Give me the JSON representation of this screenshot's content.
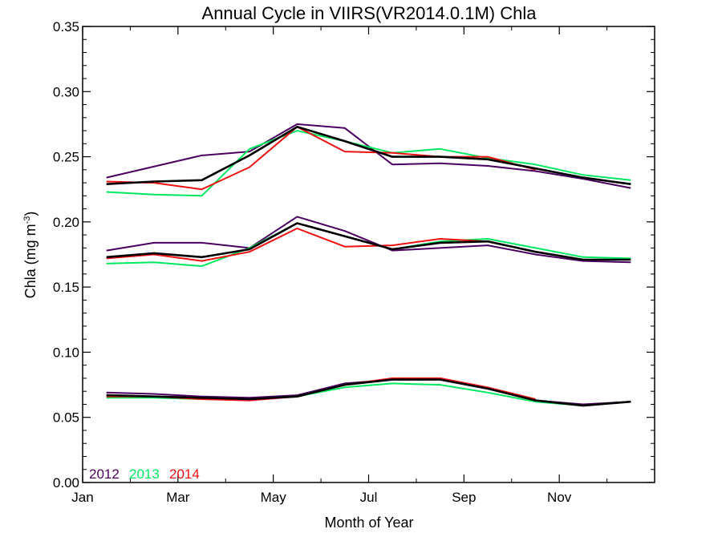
{
  "chart_data": {
    "type": "line",
    "title": "Annual Cycle in VIIRS(VR2014.0.1M) Chla",
    "xlabel": "Month of Year",
    "ylabel_main": "Chla (mg m",
    "ylabel_sup": "-3",
    "ylabel_close": ")",
    "xlim": [
      0,
      12
    ],
    "ylim": [
      0.0,
      0.35
    ],
    "grid": false,
    "legend_placement": "bottom-left",
    "x_ticks": [
      {
        "value": 0,
        "label": "Jan"
      },
      {
        "value": 2,
        "label": "Mar"
      },
      {
        "value": 4,
        "label": "May"
      },
      {
        "value": 6,
        "label": "Jul"
      },
      {
        "value": 8,
        "label": "Sep"
      },
      {
        "value": 10,
        "label": "Nov"
      }
    ],
    "y_ticks": [
      {
        "value": 0.0,
        "label": "0.00"
      },
      {
        "value": 0.05,
        "label": "0.05"
      },
      {
        "value": 0.1,
        "label": "0.10"
      },
      {
        "value": 0.15,
        "label": "0.15"
      },
      {
        "value": 0.2,
        "label": "0.20"
      },
      {
        "value": 0.25,
        "label": "0.25"
      },
      {
        "value": 0.3,
        "label": "0.30"
      },
      {
        "value": 0.35,
        "label": "0.35"
      }
    ],
    "series": [
      {
        "name": "2012",
        "color": "#4b0060",
        "group": "upper",
        "x": [
          0.5,
          2.5,
          3.5,
          4.5,
          5.5,
          6.5,
          7.5,
          8.5,
          9.5,
          10.5,
          11.5
        ],
        "y": [
          0.234,
          0.251,
          0.254,
          0.275,
          0.272,
          0.244,
          0.245,
          0.243,
          0.239,
          0.233,
          0.226
        ]
      },
      {
        "name": "2013",
        "color": "#00e860",
        "group": "upper",
        "x": [
          0.5,
          1.5,
          2.5,
          3.5,
          4.5,
          5.5,
          6.5,
          7.5,
          8.5,
          9.5,
          10.5,
          11.5
        ],
        "y": [
          0.223,
          0.221,
          0.22,
          0.256,
          0.27,
          0.262,
          0.253,
          0.256,
          0.249,
          0.244,
          0.236,
          0.232
        ]
      },
      {
        "name": "2014",
        "color": "#ee1111",
        "group": "upper",
        "x": [
          0.5,
          1.5,
          2.5,
          3.5,
          4.5,
          5.5,
          6.5,
          7.5,
          8.5,
          9.5
        ],
        "y": [
          0.231,
          0.23,
          0.225,
          0.242,
          0.273,
          0.254,
          0.253,
          0.25,
          0.25,
          0.24
        ]
      },
      {
        "name": "mean",
        "color": "#000000",
        "group": "upper",
        "x": [
          0.5,
          1.5,
          2.5,
          3.5,
          4.5,
          5.5,
          6.5,
          7.5,
          8.5,
          9.5,
          10.5,
          11.5
        ],
        "y": [
          0.229,
          0.231,
          0.232,
          0.251,
          0.273,
          0.262,
          0.25,
          0.25,
          0.248,
          0.241,
          0.234,
          0.229
        ]
      },
      {
        "name": "2012",
        "color": "#4b0060",
        "group": "middle",
        "x": [
          0.5,
          1.5,
          2.5,
          3.5,
          4.5,
          5.5,
          6.5,
          7.5,
          8.5,
          9.5,
          10.5,
          11.5
        ],
        "y": [
          0.178,
          0.184,
          0.184,
          0.18,
          0.204,
          0.193,
          0.178,
          0.18,
          0.182,
          0.175,
          0.17,
          0.169
        ]
      },
      {
        "name": "2013",
        "color": "#00e860",
        "group": "middle",
        "x": [
          0.5,
          1.5,
          2.5,
          3.5,
          4.5,
          5.5,
          6.5,
          7.5,
          8.5,
          9.5,
          10.5,
          11.5
        ],
        "y": [
          0.168,
          0.169,
          0.166,
          0.18,
          0.199,
          0.189,
          0.179,
          0.185,
          0.187,
          0.18,
          0.173,
          0.172
        ]
      },
      {
        "name": "2014",
        "color": "#ee1111",
        "group": "middle",
        "x": [
          0.5,
          1.5,
          2.5,
          3.5,
          4.5,
          5.5,
          6.5,
          7.5,
          8.5
        ],
        "y": [
          0.172,
          0.175,
          0.17,
          0.177,
          0.195,
          0.181,
          0.182,
          0.187,
          0.185
        ]
      },
      {
        "name": "mean",
        "color": "#000000",
        "group": "middle",
        "x": [
          0.5,
          1.5,
          2.5,
          3.5,
          4.5,
          5.5,
          6.5,
          7.5,
          8.5,
          9.5,
          10.5,
          11.5
        ],
        "y": [
          0.173,
          0.176,
          0.173,
          0.179,
          0.199,
          0.189,
          0.179,
          0.184,
          0.185,
          0.177,
          0.171,
          0.171
        ]
      },
      {
        "name": "2012",
        "color": "#4b0060",
        "group": "lower",
        "x": [
          0.5,
          1.5,
          2.5,
          3.5,
          4.5,
          5.5,
          6.5,
          7.5,
          8.5,
          9.5,
          10.5,
          11.5
        ],
        "y": [
          0.069,
          0.068,
          0.066,
          0.065,
          0.067,
          0.076,
          0.079,
          0.079,
          0.072,
          0.063,
          0.06,
          0.062
        ]
      },
      {
        "name": "2013",
        "color": "#00e860",
        "group": "lower",
        "x": [
          0.5,
          1.5,
          2.5,
          3.5,
          4.5,
          5.5,
          6.5,
          7.5,
          8.5,
          9.5,
          10.5,
          11.5
        ],
        "y": [
          0.065,
          0.065,
          0.064,
          0.064,
          0.066,
          0.073,
          0.076,
          0.075,
          0.069,
          0.062,
          0.059,
          0.062
        ]
      },
      {
        "name": "2014",
        "color": "#ee1111",
        "group": "lower",
        "x": [
          0.5,
          1.5,
          2.5,
          3.5,
          4.5,
          5.5,
          6.5,
          7.5,
          8.5,
          9.5
        ],
        "y": [
          0.066,
          0.066,
          0.064,
          0.063,
          0.066,
          0.075,
          0.08,
          0.08,
          0.073,
          0.064
        ]
      },
      {
        "name": "mean",
        "color": "#000000",
        "group": "lower",
        "x": [
          0.5,
          1.5,
          2.5,
          3.5,
          4.5,
          5.5,
          6.5,
          7.5,
          8.5,
          9.5,
          10.5,
          11.5
        ],
        "y": [
          0.067,
          0.066,
          0.065,
          0.064,
          0.066,
          0.075,
          0.079,
          0.079,
          0.072,
          0.063,
          0.059,
          0.062
        ]
      }
    ],
    "legend": [
      {
        "label": "2012",
        "color": "#4b0060"
      },
      {
        "label": "2013",
        "color": "#00e860"
      },
      {
        "label": "2014",
        "color": "#ee1111"
      }
    ]
  }
}
